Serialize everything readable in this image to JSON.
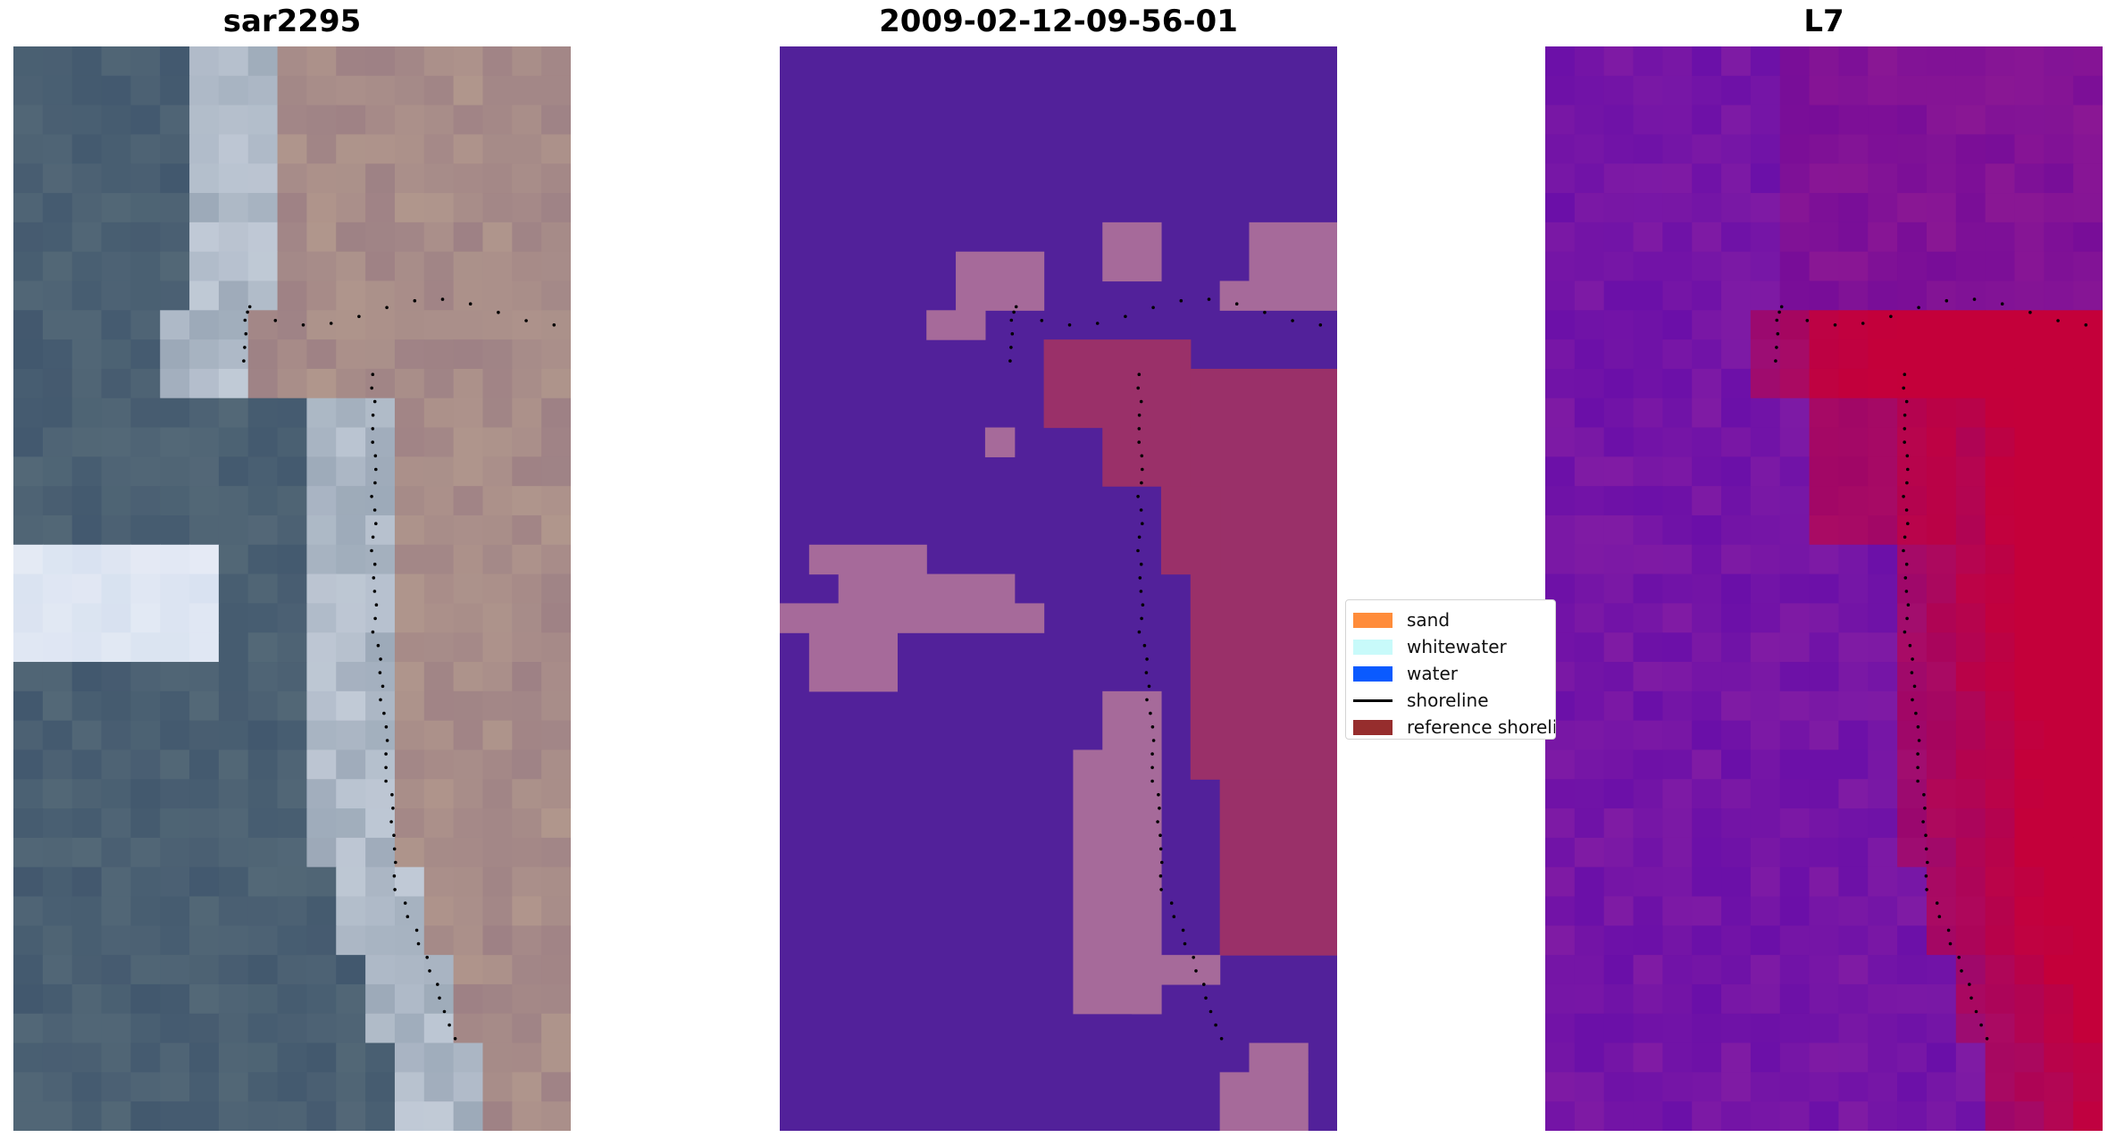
{
  "panels": [
    {
      "title": "sar2295",
      "style": "rgb"
    },
    {
      "title": "2009-02-12-09-56-01",
      "style": "classified"
    },
    {
      "title": "L7",
      "style": "index"
    }
  ],
  "legend": {
    "items": [
      {
        "label": "sand",
        "color": "#ff8c3a",
        "kind": "patch"
      },
      {
        "label": "whitewater",
        "color": "#c8fafa",
        "kind": "patch"
      },
      {
        "label": "water",
        "color": "#0a5aff",
        "kind": "patch"
      },
      {
        "label": "shoreline",
        "color": "#000000",
        "kind": "line"
      },
      {
        "label": "reference shoreline",
        "color": "#962d2d",
        "kind": "patch"
      }
    ]
  },
  "colors": {
    "classified_background": "#52219a",
    "classified_sand_overlay": "#a66a9a",
    "classified_reference": "#9a3069",
    "index_low": "#6a0fa8",
    "index_high": "#c4003a",
    "shoreline_points": "#000000"
  }
}
